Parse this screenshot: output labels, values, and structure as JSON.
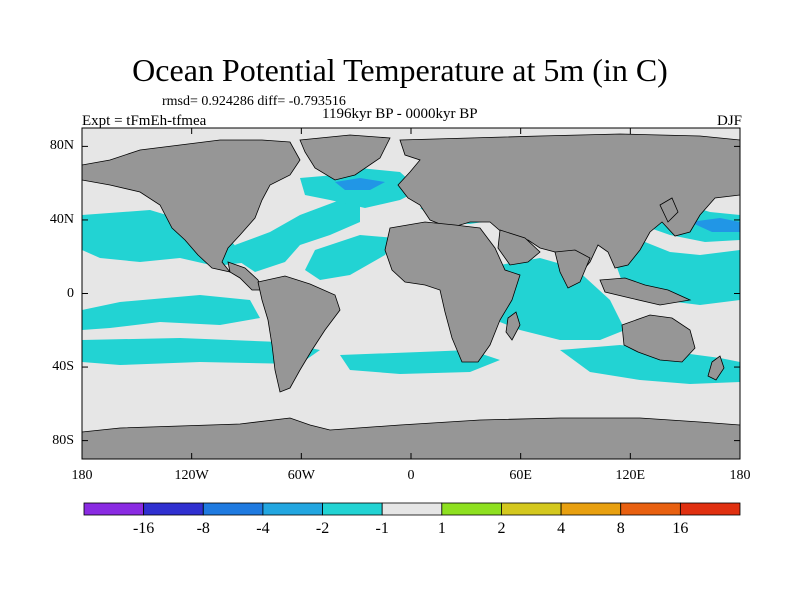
{
  "title": "Ocean Potential Temperature at 5m (in C)",
  "stats": "rmsd= 0.924286 diff= -0.793516",
  "experiment": "Expt = tFmEh-tfmea",
  "period": "1196kyr BP - 0000kyr BP",
  "season": "DJF",
  "colors": {
    "land": "#969696",
    "ocean_neutral": "#e6e6e6",
    "cyan_light": "#22d3d3",
    "blue_mid": "#2196e6",
    "frame": "#000000"
  },
  "axes": {
    "lat_labels": [
      "80N",
      "40N",
      "0",
      "40S",
      "80S"
    ],
    "lat_values": [
      80,
      40,
      0,
      -40,
      -80
    ],
    "lon_labels": [
      "180",
      "120W",
      "60W",
      "0",
      "60E",
      "120E",
      "180"
    ],
    "lon_values": [
      -180,
      -120,
      -60,
      0,
      60,
      120,
      180
    ],
    "lat_range": [
      -90,
      90
    ],
    "lon_range": [
      -180,
      180
    ]
  },
  "colorbar": {
    "boundaries": [
      "-16",
      "-8",
      "-4",
      "-2",
      "-1",
      "1",
      "2",
      "4",
      "8",
      "16"
    ],
    "colors": [
      "#8a2be2",
      "#3030d0",
      "#1f7ae0",
      "#22a6e0",
      "#22d3d3",
      "#e6e6e6",
      "#8ee020",
      "#d4c81e",
      "#e8a010",
      "#e86010",
      "#e03010"
    ]
  }
}
